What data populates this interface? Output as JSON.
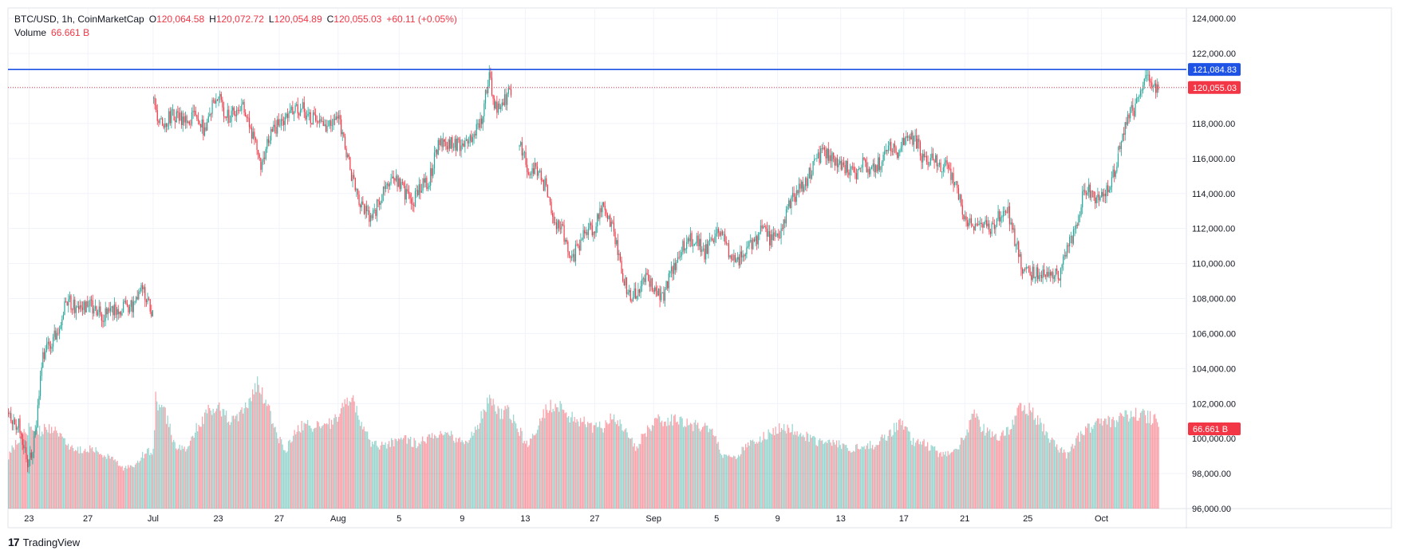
{
  "legend": {
    "symbol": "BTC/USD, 1h, CoinMarketCap",
    "o_label": "O",
    "o": "120,064.58",
    "h_label": "H",
    "h": "120,072.72",
    "l_label": "L",
    "l": "120,054.89",
    "c_label": "C",
    "c": "120,055.03",
    "change": "+60.11 (+0.05%)",
    "volume_label": "Volume",
    "volume_value": "66.661 B"
  },
  "brand": {
    "name": "TradingView",
    "logo": "17"
  },
  "colors": {
    "up": "#26A69A",
    "down": "#F23645",
    "line": "#1E53E5",
    "grid": "#F0F3FA"
  },
  "chart_data": {
    "type": "candlestick",
    "title": "BTC/USD, 1h, CoinMarketCap",
    "y_ticks": [
      "124,000.00",
      "122,000.00",
      "120,000.00",
      "118,000.00",
      "116,000.00",
      "114,000.00",
      "112,000.00",
      "110,000.00",
      "108,000.00",
      "106,000.00",
      "104,000.00",
      "102,000.00",
      "100,000.00",
      "98,000.00",
      "96,000.00"
    ],
    "y_tick_values": [
      124000,
      122000,
      120000,
      118000,
      116000,
      114000,
      112000,
      110000,
      108000,
      106000,
      104000,
      102000,
      100000,
      98000,
      96000
    ],
    "ylim": [
      96000,
      124600
    ],
    "x_ticks": [
      "23",
      "27",
      "Jul",
      "23",
      "27",
      "Aug",
      "5",
      "9",
      "13",
      "27",
      "Sep",
      "5",
      "9",
      "13",
      "17",
      "21",
      "25",
      "Oct"
    ],
    "x_tick_positions": [
      0.0,
      2.8,
      5.9,
      9.0,
      11.9,
      14.7,
      17.6,
      20.6,
      23.6,
      26.9,
      29.7,
      32.7,
      35.6,
      38.6,
      41.6,
      44.5,
      47.5,
      51.0
    ],
    "x_range": [
      -1.0,
      55.0
    ],
    "price_segments": [
      {
        "start": -1.0,
        "end": 5.9,
        "points": [
          [
            -1.0,
            101.3
          ],
          [
            -0.5,
            100.8
          ],
          [
            -0.1,
            98.5
          ],
          [
            0.3,
            100.2
          ],
          [
            0.6,
            104.5
          ],
          [
            0.9,
            105.2
          ],
          [
            1.3,
            106.0
          ],
          [
            1.6,
            107.3
          ],
          [
            1.9,
            107.8
          ],
          [
            2.2,
            107.5
          ],
          [
            2.5,
            107.3
          ],
          [
            2.8,
            107.6
          ],
          [
            3.2,
            107.3
          ],
          [
            3.5,
            107.0
          ],
          [
            3.9,
            107.5
          ],
          [
            4.2,
            107.4
          ],
          [
            4.6,
            107.6
          ],
          [
            5.0,
            107.6
          ],
          [
            5.3,
            108.5
          ],
          [
            5.6,
            108.0
          ],
          [
            5.9,
            107.1
          ]
        ]
      },
      {
        "start": 5.9,
        "end": 22.9,
        "points": [
          [
            5.9,
            119.3
          ],
          [
            6.1,
            118.0
          ],
          [
            6.5,
            118.2
          ],
          [
            7.0,
            118.5
          ],
          [
            7.4,
            118.2
          ],
          [
            7.9,
            118.5
          ],
          [
            8.3,
            117.6
          ],
          [
            8.6,
            118.8
          ],
          [
            9.0,
            119.5
          ],
          [
            9.3,
            118.3
          ],
          [
            9.7,
            118.6
          ],
          [
            10.0,
            119.2
          ],
          [
            10.4,
            118.3
          ],
          [
            10.8,
            116.5
          ],
          [
            11.0,
            115.4
          ],
          [
            11.3,
            117.0
          ],
          [
            11.7,
            117.8
          ],
          [
            12.2,
            118.3
          ],
          [
            12.6,
            119.0
          ],
          [
            13.0,
            118.8
          ],
          [
            13.5,
            118.2
          ],
          [
            13.9,
            117.7
          ],
          [
            14.3,
            118.2
          ],
          [
            14.7,
            118.5
          ],
          [
            15.0,
            116.8
          ],
          [
            15.4,
            114.6
          ],
          [
            15.8,
            113.3
          ],
          [
            16.2,
            112.6
          ],
          [
            16.6,
            113.4
          ],
          [
            17.0,
            114.4
          ],
          [
            17.4,
            114.9
          ],
          [
            17.8,
            114.2
          ],
          [
            18.2,
            113.4
          ],
          [
            18.6,
            114.3
          ],
          [
            19.0,
            114.8
          ],
          [
            19.4,
            116.7
          ],
          [
            19.8,
            117.0
          ],
          [
            20.2,
            116.7
          ],
          [
            20.6,
            116.9
          ],
          [
            20.9,
            117.3
          ],
          [
            21.2,
            117.5
          ],
          [
            21.5,
            118.3
          ],
          [
            21.9,
            121.0
          ],
          [
            22.1,
            118.9
          ],
          [
            22.5,
            119.1
          ],
          [
            22.9,
            119.9
          ]
        ]
      },
      {
        "start": 23.3,
        "end": 51.8,
        "points": [
          [
            23.3,
            116.9
          ],
          [
            23.7,
            115.5
          ],
          [
            24.1,
            115.3
          ],
          [
            24.6,
            114.3
          ],
          [
            25.0,
            112.4
          ],
          [
            25.4,
            111.8
          ],
          [
            25.7,
            110.0
          ],
          [
            26.0,
            110.8
          ],
          [
            26.5,
            112.0
          ],
          [
            26.9,
            112.1
          ],
          [
            27.3,
            113.2
          ],
          [
            27.7,
            112.3
          ],
          [
            28.1,
            109.7
          ],
          [
            28.5,
            108.3
          ],
          [
            28.9,
            108.2
          ],
          [
            29.3,
            109.1
          ],
          [
            29.7,
            108.6
          ],
          [
            30.1,
            108.1
          ],
          [
            30.5,
            109.3
          ],
          [
            30.9,
            110.7
          ],
          [
            31.3,
            111.3
          ],
          [
            31.7,
            111.5
          ],
          [
            32.1,
            110.6
          ],
          [
            32.5,
            111.5
          ],
          [
            32.9,
            111.9
          ],
          [
            33.3,
            110.5
          ],
          [
            33.7,
            110.2
          ],
          [
            34.1,
            111.0
          ],
          [
            34.5,
            111.4
          ],
          [
            34.9,
            112.0
          ],
          [
            35.3,
            111.3
          ],
          [
            35.7,
            111.6
          ],
          [
            36.1,
            113.2
          ],
          [
            36.5,
            114.0
          ],
          [
            36.9,
            114.5
          ],
          [
            37.3,
            115.8
          ],
          [
            37.7,
            116.3
          ],
          [
            38.1,
            116.0
          ],
          [
            38.5,
            115.8
          ],
          [
            38.9,
            115.5
          ],
          [
            39.3,
            115.2
          ],
          [
            39.7,
            115.7
          ],
          [
            40.1,
            115.3
          ],
          [
            40.5,
            115.8
          ],
          [
            40.9,
            116.8
          ],
          [
            41.3,
            116.2
          ],
          [
            41.7,
            117.6
          ],
          [
            42.1,
            117.1
          ],
          [
            42.5,
            116.0
          ],
          [
            42.9,
            116.0
          ],
          [
            43.3,
            115.7
          ],
          [
            43.7,
            115.4
          ],
          [
            44.1,
            114.3
          ],
          [
            44.5,
            112.6
          ],
          [
            44.9,
            112.3
          ],
          [
            45.3,
            112.5
          ],
          [
            45.7,
            111.8
          ],
          [
            46.1,
            112.8
          ],
          [
            46.5,
            113.2
          ],
          [
            46.9,
            111.2
          ],
          [
            47.3,
            109.4
          ],
          [
            47.7,
            109.5
          ],
          [
            48.1,
            109.3
          ],
          [
            48.6,
            109.4
          ],
          [
            49.0,
            109.4
          ],
          [
            49.4,
            111.0
          ],
          [
            49.8,
            112.1
          ],
          [
            50.2,
            114.5
          ],
          [
            50.6,
            113.6
          ],
          [
            51.0,
            114.2
          ],
          [
            51.4,
            114.3
          ],
          [
            51.8,
            116.3
          ]
        ]
      },
      {
        "start": 51.8,
        "end": 53.7,
        "points": [
          [
            51.8,
            116.3
          ],
          [
            52.2,
            118.2
          ],
          [
            52.6,
            119.0
          ],
          [
            52.9,
            119.6
          ],
          [
            53.1,
            120.7
          ],
          [
            53.3,
            120.3
          ],
          [
            53.5,
            120.2
          ],
          [
            53.7,
            120.05
          ]
        ]
      }
    ],
    "volume_profile": [
      [
        -1.0,
        0.38
      ],
      [
        -0.5,
        0.5
      ],
      [
        0.0,
        0.58
      ],
      [
        0.5,
        0.55
      ],
      [
        1.0,
        0.58
      ],
      [
        1.5,
        0.5
      ],
      [
        2.0,
        0.44
      ],
      [
        2.5,
        0.42
      ],
      [
        3.0,
        0.42
      ],
      [
        3.5,
        0.39
      ],
      [
        4.0,
        0.34
      ],
      [
        4.5,
        0.28
      ],
      [
        5.0,
        0.31
      ],
      [
        5.5,
        0.4
      ],
      [
        5.9,
        0.42
      ],
      [
        6.0,
        0.78
      ],
      [
        6.4,
        0.7
      ],
      [
        6.9,
        0.46
      ],
      [
        7.4,
        0.42
      ],
      [
        8.0,
        0.6
      ],
      [
        8.5,
        0.69
      ],
      [
        9.0,
        0.72
      ],
      [
        9.5,
        0.63
      ],
      [
        10.0,
        0.66
      ],
      [
        10.5,
        0.78
      ],
      [
        10.9,
        0.9
      ],
      [
        11.3,
        0.74
      ],
      [
        11.8,
        0.5
      ],
      [
        12.2,
        0.42
      ],
      [
        12.7,
        0.57
      ],
      [
        13.3,
        0.6
      ],
      [
        13.9,
        0.58
      ],
      [
        14.5,
        0.62
      ],
      [
        14.9,
        0.72
      ],
      [
        15.3,
        0.82
      ],
      [
        15.7,
        0.63
      ],
      [
        16.2,
        0.48
      ],
      [
        16.7,
        0.44
      ],
      [
        17.3,
        0.48
      ],
      [
        17.9,
        0.49
      ],
      [
        18.5,
        0.46
      ],
      [
        19.1,
        0.52
      ],
      [
        19.7,
        0.56
      ],
      [
        20.3,
        0.5
      ],
      [
        20.8,
        0.48
      ],
      [
        21.3,
        0.58
      ],
      [
        21.9,
        0.82
      ],
      [
        22.3,
        0.68
      ],
      [
        22.8,
        0.7
      ],
      [
        23.2,
        0.6
      ],
      [
        23.6,
        0.45
      ],
      [
        24.1,
        0.58
      ],
      [
        24.6,
        0.72
      ],
      [
        25.1,
        0.76
      ],
      [
        25.6,
        0.66
      ],
      [
        26.2,
        0.63
      ],
      [
        26.8,
        0.58
      ],
      [
        27.3,
        0.58
      ],
      [
        27.8,
        0.68
      ],
      [
        28.3,
        0.56
      ],
      [
        28.8,
        0.44
      ],
      [
        29.4,
        0.56
      ],
      [
        30.0,
        0.64
      ],
      [
        30.6,
        0.63
      ],
      [
        31.2,
        0.62
      ],
      [
        31.8,
        0.58
      ],
      [
        32.4,
        0.56
      ],
      [
        33.0,
        0.36
      ],
      [
        33.6,
        0.38
      ],
      [
        34.2,
        0.45
      ],
      [
        34.8,
        0.5
      ],
      [
        35.4,
        0.56
      ],
      [
        36.0,
        0.58
      ],
      [
        36.6,
        0.54
      ],
      [
        37.2,
        0.5
      ],
      [
        37.8,
        0.46
      ],
      [
        38.4,
        0.46
      ],
      [
        39.0,
        0.42
      ],
      [
        39.6,
        0.44
      ],
      [
        40.2,
        0.46
      ],
      [
        40.8,
        0.52
      ],
      [
        41.4,
        0.62
      ],
      [
        42.0,
        0.48
      ],
      [
        42.6,
        0.46
      ],
      [
        43.2,
        0.4
      ],
      [
        43.8,
        0.38
      ],
      [
        44.4,
        0.5
      ],
      [
        44.9,
        0.67
      ],
      [
        45.4,
        0.56
      ],
      [
        46.0,
        0.5
      ],
      [
        46.6,
        0.56
      ],
      [
        47.1,
        0.74
      ],
      [
        47.6,
        0.7
      ],
      [
        48.1,
        0.6
      ],
      [
        48.7,
        0.46
      ],
      [
        49.3,
        0.38
      ],
      [
        49.8,
        0.5
      ],
      [
        50.4,
        0.58
      ],
      [
        51.0,
        0.64
      ],
      [
        51.6,
        0.62
      ],
      [
        52.1,
        0.66
      ],
      [
        52.6,
        0.68
      ],
      [
        53.1,
        0.66
      ],
      [
        53.7,
        0.62
      ]
    ],
    "volume_max": 100.0,
    "current_price": 120055.03,
    "current_price_label": "120,055.03",
    "horizontal_line": 121084.83,
    "horizontal_line_label": "121,084.83",
    "volume_label": "66.661 B"
  }
}
